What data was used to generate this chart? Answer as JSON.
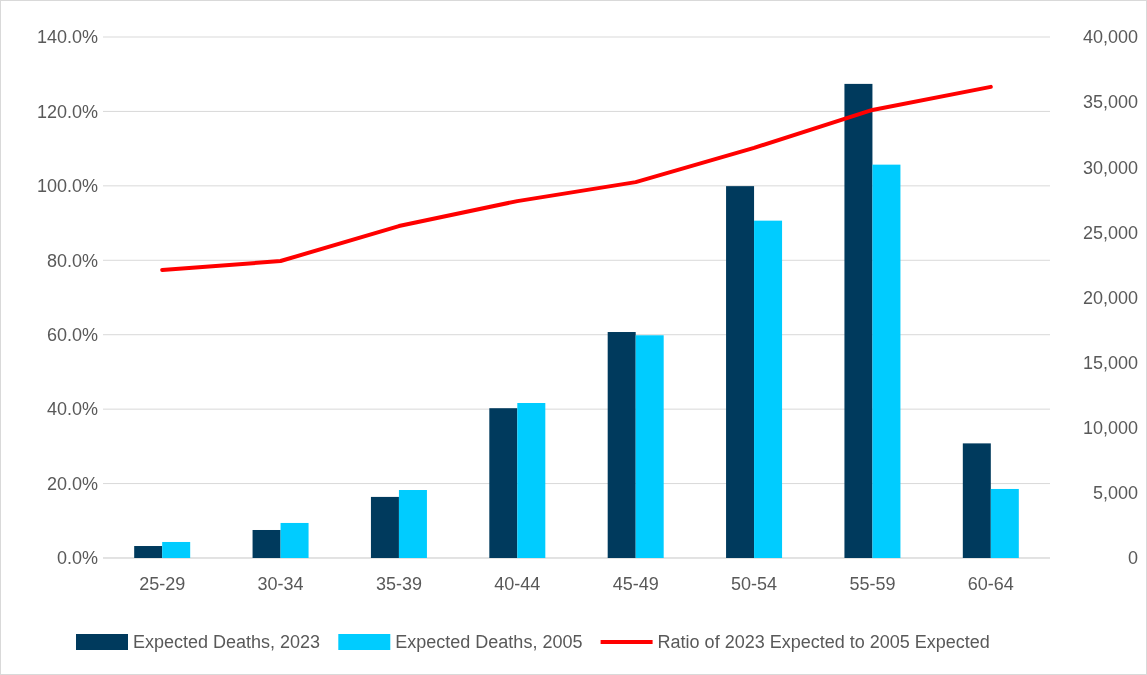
{
  "chart_data": {
    "type": "bar",
    "categories": [
      "25-29",
      "30-34",
      "35-39",
      "40-44",
      "45-49",
      "50-54",
      "55-59",
      "60-64"
    ],
    "series": [
      {
        "name": "Expected Deaths, 2023",
        "color": "#003a5d",
        "axis": "y2",
        "values": [
          920,
          2150,
          4690,
          11500,
          17350,
          28550,
          36400,
          8800
        ]
      },
      {
        "name": "Expected Deaths, 2005",
        "color": "#00ccff",
        "axis": "y2",
        "values": [
          1230,
          2690,
          5220,
          11900,
          17100,
          25900,
          30200,
          5300
        ]
      },
      {
        "name": "Ratio of 2023 Expected to 2005 Expected",
        "type": "line",
        "color": "#ff0000",
        "values": [
          77.4,
          79.8,
          89.2,
          95.9,
          101.0,
          110.2,
          120.4,
          126.6
        ]
      }
    ],
    "ylim": [
      0,
      140
    ],
    "yticks": [
      {
        "value": 0,
        "label": "0.0%"
      },
      {
        "value": 20,
        "label": "20.0%"
      },
      {
        "value": 40,
        "label": "40.0%"
      },
      {
        "value": 60,
        "label": "60.0%"
      },
      {
        "value": 80,
        "label": "80.0%"
      },
      {
        "value": 100,
        "label": "100.0%"
      },
      {
        "value": 120,
        "label": "120.0%"
      },
      {
        "value": 140,
        "label": "140.0%"
      }
    ],
    "y2lim": [
      0,
      40000
    ],
    "y2ticks": [
      {
        "value": 0,
        "label": "0"
      },
      {
        "value": 5000,
        "label": "5,000"
      },
      {
        "value": 10000,
        "label": "10,000"
      },
      {
        "value": 15000,
        "label": "15,000"
      },
      {
        "value": 20000,
        "label": "20,000"
      },
      {
        "value": 25000,
        "label": "25,000"
      },
      {
        "value": 30000,
        "label": "30,000"
      },
      {
        "value": 35000,
        "label": "35,000"
      },
      {
        "value": 40000,
        "label": "40,000"
      }
    ],
    "grid": "y",
    "legend": "bottom"
  }
}
